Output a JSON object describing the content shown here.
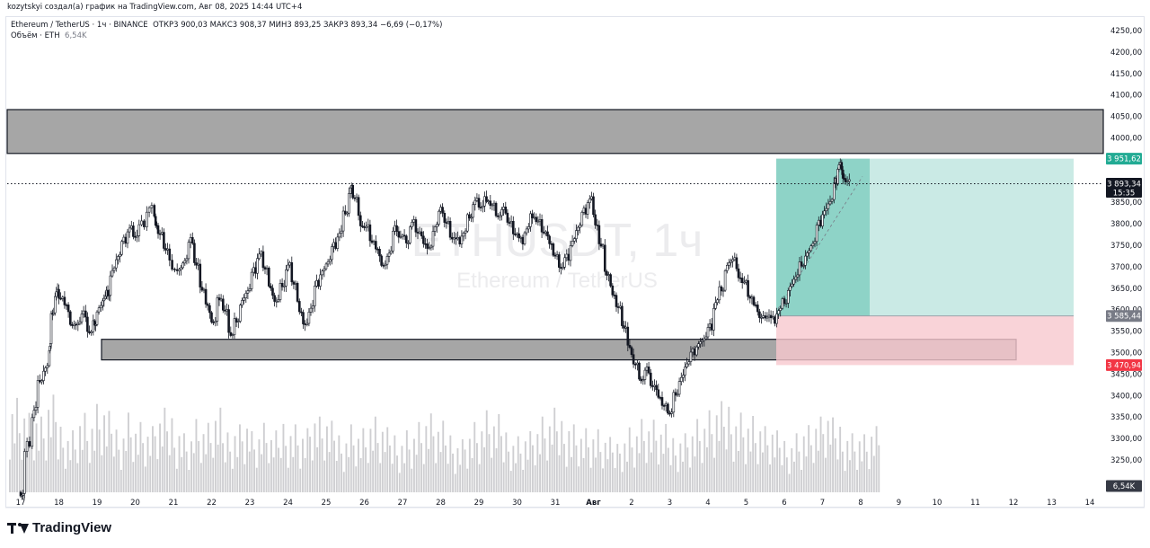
{
  "header": {
    "author_line": "kozytskyi создал(а) график на TradingView.com, Авг 08, 2025 14:44 UTC+4"
  },
  "legend": {
    "symbol": "Ethereum / TetherUS · 1ч · BINANCE",
    "ohlc": "ОТКР3 900,03  МАКС3 908,37  МИН3 893,25  ЗАКР3 893,34  −6,69 (−0,17%)",
    "volume_label": "Объём · ETH",
    "volume_value": "6,54K"
  },
  "watermark": {
    "ticker": "ETHUSDT, 1ч",
    "pair": "Ethereum / TetherUS"
  },
  "brand": {
    "name": "TradingView"
  },
  "chart_data": {
    "type": "candlestick",
    "title": "Ethereum / TetherUS · 1ч · BINANCE",
    "y_axis": {
      "min": 3200,
      "max": 4280,
      "ticks": [
        "4250,00",
        "4200,00",
        "4150,00",
        "4100,00",
        "4050,00",
        "4000,00",
        "3950,00",
        "3900,00",
        "3850,00",
        "3800,00",
        "3750,00",
        "3700,00",
        "3650,00",
        "3600,00",
        "3550,00",
        "3500,00",
        "3450,00",
        "3400,00",
        "3350,00",
        "3300,00",
        "3250,00"
      ],
      "tick_values": [
        4250,
        4200,
        4150,
        4100,
        4050,
        4000,
        3950,
        3900,
        3850,
        3800,
        3750,
        3700,
        3650,
        3600,
        3550,
        3500,
        3450,
        3400,
        3350,
        3300,
        3250
      ]
    },
    "x_axis": {
      "labels": [
        "17",
        "18",
        "19",
        "20",
        "21",
        "22",
        "23",
        "24",
        "25",
        "26",
        "27",
        "28",
        "29",
        "30",
        "31",
        "Авг",
        "2",
        "3",
        "4",
        "5",
        "6",
        "7",
        "8",
        "9",
        "10",
        "11",
        "12",
        "13",
        "14"
      ],
      "label_days": [
        0,
        1,
        2,
        3,
        4,
        5,
        6,
        7,
        8,
        9,
        10,
        11,
        12,
        13,
        14,
        15,
        16,
        17,
        18,
        19,
        20,
        21,
        22,
        23,
        24,
        25,
        26,
        27,
        28
      ]
    },
    "price_path": [
      [
        0.0,
        3175
      ],
      [
        0.1,
        3290
      ],
      [
        0.3,
        3370
      ],
      [
        0.45,
        3440
      ],
      [
        0.6,
        3460
      ],
      [
        0.75,
        3520
      ],
      [
        0.8,
        3600
      ],
      [
        0.9,
        3640
      ],
      [
        1.0,
        3630
      ],
      [
        1.15,
        3600
      ],
      [
        1.3,
        3560
      ],
      [
        1.45,
        3575
      ],
      [
        1.6,
        3590
      ],
      [
        1.75,
        3545
      ],
      [
        1.9,
        3570
      ],
      [
        2.0,
        3600
      ],
      [
        2.15,
        3630
      ],
      [
        2.25,
        3640
      ],
      [
        2.35,
        3690
      ],
      [
        2.5,
        3730
      ],
      [
        2.65,
        3760
      ],
      [
        2.8,
        3790
      ],
      [
        2.95,
        3775
      ],
      [
        3.1,
        3800
      ],
      [
        3.3,
        3840
      ],
      [
        3.5,
        3800
      ],
      [
        3.6,
        3770
      ],
      [
        3.75,
        3740
      ],
      [
        3.9,
        3700
      ],
      [
        4.1,
        3690
      ],
      [
        4.25,
        3720
      ],
      [
        4.4,
        3760
      ],
      [
        4.55,
        3700
      ],
      [
        4.7,
        3650
      ],
      [
        4.85,
        3600
      ],
      [
        5.0,
        3570
      ],
      [
        5.15,
        3630
      ],
      [
        5.3,
        3590
      ],
      [
        5.45,
        3540
      ],
      [
        5.6,
        3580
      ],
      [
        5.75,
        3620
      ],
      [
        5.9,
        3650
      ],
      [
        6.05,
        3690
      ],
      [
        6.2,
        3730
      ],
      [
        6.35,
        3700
      ],
      [
        6.5,
        3640
      ],
      [
        6.65,
        3620
      ],
      [
        6.8,
        3660
      ],
      [
        6.95,
        3700
      ],
      [
        7.1,
        3660
      ],
      [
        7.25,
        3600
      ],
      [
        7.4,
        3560
      ],
      [
        7.55,
        3610
      ],
      [
        7.7,
        3660
      ],
      [
        7.85,
        3690
      ],
      [
        8.0,
        3720
      ],
      [
        8.15,
        3750
      ],
      [
        8.3,
        3780
      ],
      [
        8.45,
        3830
      ],
      [
        8.6,
        3880
      ],
      [
        8.7,
        3860
      ],
      [
        8.85,
        3800
      ],
      [
        9.0,
        3790
      ],
      [
        9.15,
        3760
      ],
      [
        9.3,
        3730
      ],
      [
        9.45,
        3700
      ],
      [
        9.6,
        3740
      ],
      [
        9.75,
        3790
      ],
      [
        9.9,
        3770
      ],
      [
        10.05,
        3760
      ],
      [
        10.2,
        3800
      ],
      [
        10.35,
        3780
      ],
      [
        10.5,
        3760
      ],
      [
        10.65,
        3740
      ],
      [
        10.8,
        3800
      ],
      [
        10.95,
        3830
      ],
      [
        11.1,
        3800
      ],
      [
        11.25,
        3770
      ],
      [
        11.4,
        3760
      ],
      [
        11.55,
        3780
      ],
      [
        11.7,
        3820
      ],
      [
        11.85,
        3850
      ],
      [
        12.0,
        3840
      ],
      [
        12.15,
        3860
      ],
      [
        12.3,
        3840
      ],
      [
        12.45,
        3820
      ],
      [
        12.6,
        3830
      ],
      [
        12.75,
        3800
      ],
      [
        12.9,
        3780
      ],
      [
        13.05,
        3760
      ],
      [
        13.2,
        3790
      ],
      [
        13.35,
        3820
      ],
      [
        13.5,
        3800
      ],
      [
        13.65,
        3780
      ],
      [
        13.8,
        3760
      ],
      [
        13.95,
        3720
      ],
      [
        14.1,
        3700
      ],
      [
        14.25,
        3720
      ],
      [
        14.4,
        3760
      ],
      [
        14.55,
        3800
      ],
      [
        14.7,
        3830
      ],
      [
        14.85,
        3860
      ],
      [
        15.0,
        3800
      ],
      [
        15.15,
        3740
      ],
      [
        15.3,
        3680
      ],
      [
        15.45,
        3640
      ],
      [
        15.6,
        3600
      ],
      [
        15.75,
        3560
      ],
      [
        15.9,
        3500
      ],
      [
        16.05,
        3470
      ],
      [
        16.2,
        3440
      ],
      [
        16.35,
        3460
      ],
      [
        16.5,
        3420
      ],
      [
        16.65,
        3400
      ],
      [
        16.8,
        3370
      ],
      [
        16.95,
        3360
      ],
      [
        17.1,
        3410
      ],
      [
        17.25,
        3440
      ],
      [
        17.4,
        3480
      ],
      [
        17.55,
        3500
      ],
      [
        17.7,
        3520
      ],
      [
        17.85,
        3540
      ],
      [
        18.0,
        3560
      ],
      [
        18.15,
        3620
      ],
      [
        18.3,
        3650
      ],
      [
        18.45,
        3700
      ],
      [
        18.6,
        3720
      ],
      [
        18.75,
        3680
      ],
      [
        18.9,
        3660
      ],
      [
        19.05,
        3630
      ],
      [
        19.2,
        3600
      ],
      [
        19.35,
        3580
      ],
      [
        19.5,
        3590
      ],
      [
        19.65,
        3575
      ],
      [
        19.8,
        3600
      ],
      [
        19.95,
        3620
      ],
      [
        20.1,
        3650
      ],
      [
        20.25,
        3680
      ],
      [
        20.4,
        3710
      ],
      [
        20.55,
        3730
      ],
      [
        20.7,
        3760
      ],
      [
        20.85,
        3800
      ],
      [
        21.0,
        3830
      ],
      [
        21.15,
        3860
      ],
      [
        21.3,
        3900
      ],
      [
        21.4,
        3940
      ],
      [
        21.5,
        3910
      ],
      [
        21.6,
        3893
      ]
    ],
    "volume_values": [
      320,
      290,
      260,
      240,
      300,
      230,
      210,
      260,
      240,
      280,
      250,
      220,
      270,
      230,
      210,
      250,
      260,
      230,
      200,
      240,
      220,
      260,
      210,
      230,
      250,
      200,
      220,
      190,
      240,
      230,
      210,
      260,
      240,
      220,
      200,
      230,
      210,
      240,
      220,
      200,
      190,
      210,
      230,
      250,
      220,
      200,
      180,
      210,
      230,
      260,
      240,
      210,
      190,
      200,
      220,
      240,
      260,
      250,
      230,
      210,
      200,
      180,
      170,
      200,
      220,
      240,
      230,
      210,
      190,
      200,
      220,
      240,
      260,
      280,
      300,
      270,
      250,
      230,
      210,
      190,
      180,
      200,
      220,
      240,
      260,
      230,
      210,
      200,
      190,
      210
    ],
    "current_price": 3893.34,
    "current_price_label": "3 893,34",
    "countdown": "15:35",
    "volume_last": "6,54K",
    "zones": [
      {
        "name": "resistance",
        "y1": 3964,
        "y2": 4066
      },
      {
        "name": "support",
        "y1": 3483,
        "y2": 3531
      }
    ],
    "position": {
      "type": "long",
      "entry": 3585.44,
      "entry_label": "3 585,44",
      "target": 3951.62,
      "target_label": "3 951,62",
      "stop": 3470.94,
      "stop_label": "3 470,94",
      "filled_until_day": 21.75
    }
  },
  "colors": {
    "up": "#131722",
    "down": "#131722",
    "zone_fill": "#a6a6a6",
    "profit": "#b8e3dc",
    "profit_strong": "#5dbfae",
    "loss": "#f8c8ce",
    "target_label": "#22ab94",
    "stop_label": "#f23645",
    "entry_label": "#787b86"
  }
}
